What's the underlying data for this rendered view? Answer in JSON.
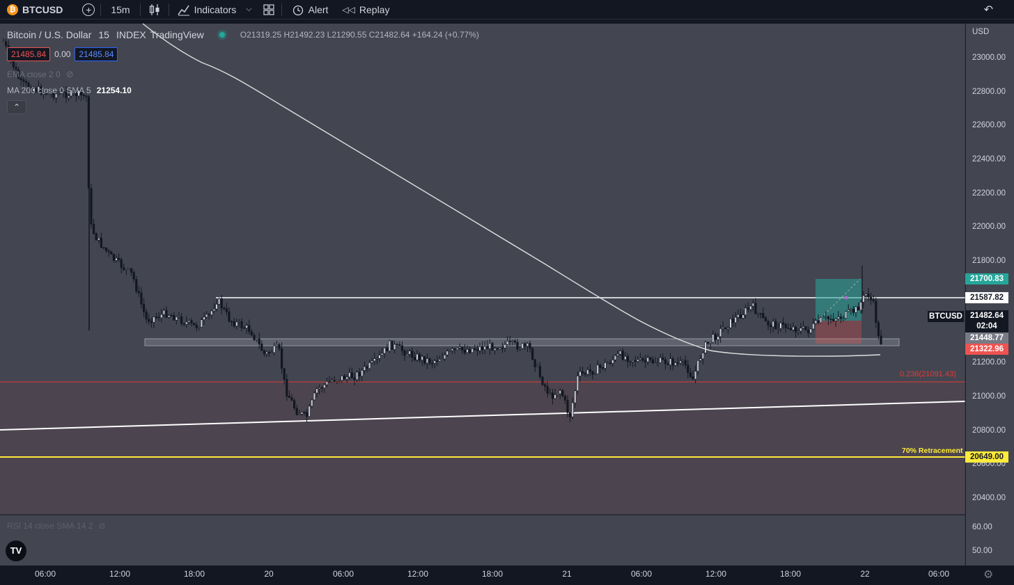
{
  "toolbar": {
    "symbol": "BTCUSD",
    "interval": "15m",
    "indicators_label": "Indicators",
    "alert_label": "Alert",
    "replay_label": "Replay"
  },
  "legend": {
    "title": "Bitcoin / U.S. Dollar",
    "interval": "15",
    "exchange": "INDEX",
    "source": "TradingView",
    "ohlc": {
      "o_label": "O",
      "o": "21319.25",
      "h_label": "H",
      "h": "21492.23",
      "l_label": "L",
      "l": "21290.55",
      "c_label": "C",
      "c": "21482.64",
      "change": "+164.24 (+0.77%)"
    },
    "bid": "21485.84",
    "spread": "0.00",
    "ask": "21485.84",
    "ma_hidden": "EMA close 2 0",
    "ma_label": "MA 200 close 0 SMA 5",
    "ma_value": "21254.10",
    "rsi_label": "RSI 14 close SMA 14 2"
  },
  "price_axis": {
    "currency": "USD",
    "ticks": [
      "23000.00",
      "22800.00",
      "22600.00",
      "22400.00",
      "22200.00",
      "22000.00",
      "21800.00",
      "21200.00",
      "21000.00",
      "20800.00",
      "20600.00",
      "20400.00"
    ],
    "rsi_ticks": [
      "60.00",
      "50.00"
    ]
  },
  "price_tags": {
    "target": "21700.83",
    "resistance": "21587.82",
    "symbol": "BTCUSD",
    "last": "21482.64",
    "countdown": "02:04",
    "entry": "21448.77",
    "stop": "21322.96",
    "retracement": "20649.00"
  },
  "annotations": {
    "fib": "0.236(21091.43)",
    "retracement_label": "70% Retracement"
  },
  "time_axis": [
    "06:00",
    "12:00",
    "18:00",
    "20",
    "06:00",
    "12:00",
    "18:00",
    "21",
    "06:00",
    "12:00",
    "18:00",
    "22",
    "06:00"
  ],
  "colors": {
    "background": "#434651",
    "toolbar": "#131722",
    "bull": "#d1d4dc",
    "bear": "#131722",
    "target": "#26a69a",
    "stop": "#ef5350",
    "retracement": "#ffeb3b",
    "fib": "#e53935"
  },
  "logo": "TV"
}
